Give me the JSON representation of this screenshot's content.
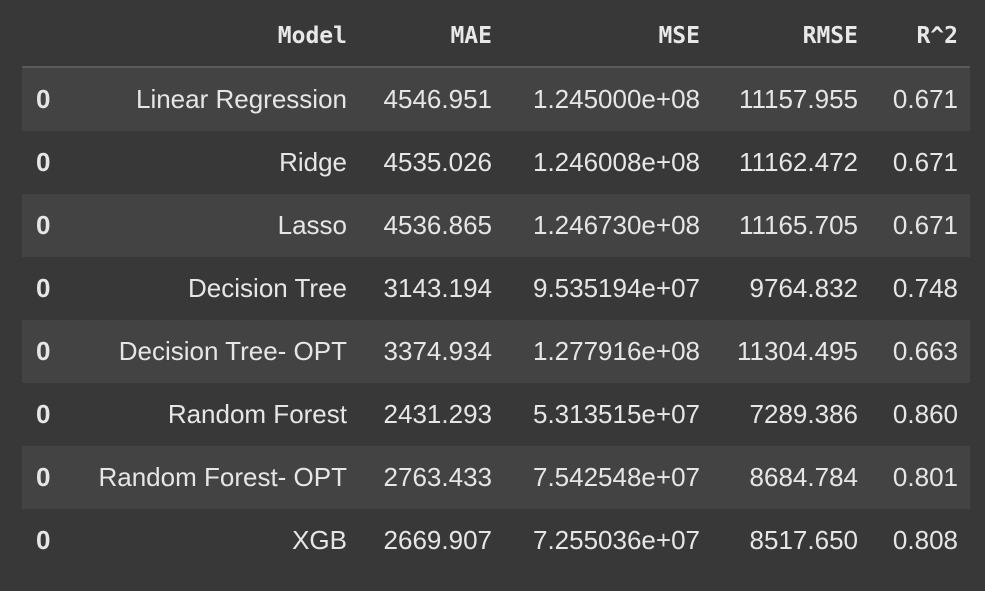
{
  "table": {
    "columns": [
      "",
      "Model",
      "MAE",
      "MSE",
      "RMSE",
      "R^2"
    ],
    "rows": [
      {
        "index": "0",
        "model": "Linear Regression",
        "mae": "4546.951",
        "mse": "1.245000e+08",
        "rmse": "11157.955",
        "r2": "0.671"
      },
      {
        "index": "0",
        "model": "Ridge",
        "mae": "4535.026",
        "mse": "1.246008e+08",
        "rmse": "11162.472",
        "r2": "0.671"
      },
      {
        "index": "0",
        "model": "Lasso",
        "mae": "4536.865",
        "mse": "1.246730e+08",
        "rmse": "11165.705",
        "r2": "0.671"
      },
      {
        "index": "0",
        "model": "Decision Tree",
        "mae": "3143.194",
        "mse": "9.535194e+07",
        "rmse": "9764.832",
        "r2": "0.748"
      },
      {
        "index": "0",
        "model": "Decision Tree- OPT",
        "mae": "3374.934",
        "mse": "1.277916e+08",
        "rmse": "11304.495",
        "r2": "0.663"
      },
      {
        "index": "0",
        "model": "Random Forest",
        "mae": "2431.293",
        "mse": "5.313515e+07",
        "rmse": "7289.386",
        "r2": "0.860"
      },
      {
        "index": "0",
        "model": "Random Forest- OPT",
        "mae": "2763.433",
        "mse": "7.542548e+07",
        "rmse": "8684.784",
        "r2": "0.801"
      },
      {
        "index": "0",
        "model": "XGB",
        "mae": "2669.907",
        "mse": "7.255036e+07",
        "rmse": "8517.650",
        "r2": "0.808"
      }
    ]
  },
  "colors": {
    "background": "#383838",
    "row_stripe": "#434343",
    "text": "#e6e6e6",
    "header_rule": "#5a5a5a"
  }
}
